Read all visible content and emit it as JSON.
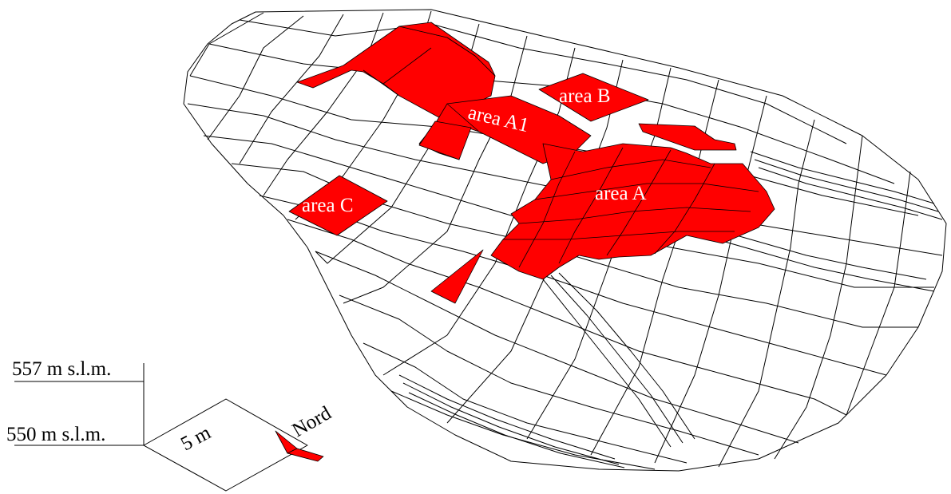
{
  "figure": {
    "areas": [
      {
        "id": "area-a",
        "label": "area A"
      },
      {
        "id": "area-a1",
        "label": "area A1"
      },
      {
        "id": "area-b",
        "label": "area B"
      },
      {
        "id": "area-c",
        "label": "area C"
      }
    ],
    "scale": {
      "elevation_top": "557 m s.l.m.",
      "elevation_bottom": "550 m s.l.m.",
      "horizontal": "5 m"
    },
    "north_label": "Nord",
    "colors": {
      "excavated_area": "#ff0000",
      "mesh_lines": "#000000",
      "background": "#ffffff"
    }
  }
}
